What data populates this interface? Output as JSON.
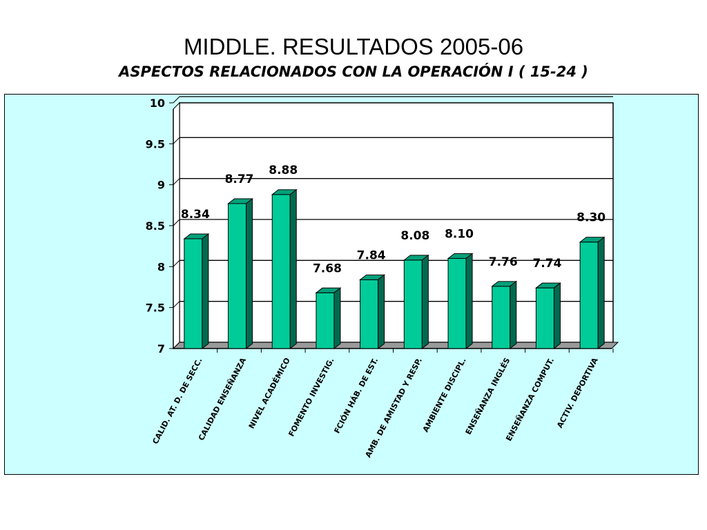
{
  "title": "MIDDLE. RESULTADOS 2005-06",
  "subtitle": "ASPECTOS RELACIONADOS CON LA OPERACIÓN  I ( 15-24 )",
  "colors": {
    "panel_background": "#ccffff",
    "plot_background": "#ffffff",
    "bar_front": "#00cc99",
    "bar_top": "#00a07a",
    "bar_side": "#006a50",
    "floor": "#999999",
    "gridline": "#000000"
  },
  "chart_data": {
    "type": "bar",
    "title": "",
    "xlabel": "",
    "ylabel": "",
    "ylim": [
      7,
      10
    ],
    "yticks": [
      "7",
      "7.5",
      "8",
      "8.5",
      "9",
      "9.5",
      "10"
    ],
    "grid": true,
    "style": "3d",
    "categories": [
      "CALID. AT. D. DE SECC.",
      "CALIDAD ENSEÑANZA",
      "NIVEL ACADÉMICO",
      "FOMENTO INVESTIG.",
      "FCIÓN HÁB. DE EST.",
      "AMB. DE AMISTAD Y RESP.",
      "AMBIENTE DISCIPL.",
      "ENSEÑANZA INGLÉS",
      "ENSEÑANZA COMPUT.",
      "ACTIV. DEPORTIVA"
    ],
    "values": [
      8.34,
      8.77,
      8.88,
      7.68,
      7.84,
      8.08,
      8.1,
      7.76,
      7.74,
      8.3
    ],
    "data_labels": [
      "8.34",
      "8.77",
      "8.88",
      "7.68",
      "7.84",
      "8.08",
      "8.10",
      "7.76",
      "7.74",
      "8.30"
    ]
  }
}
